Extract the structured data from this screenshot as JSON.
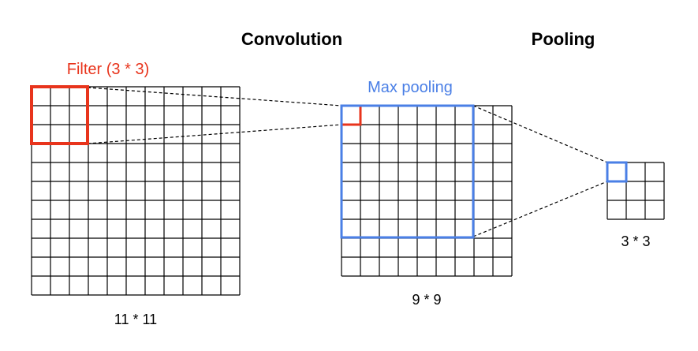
{
  "headings": {
    "convolution": "Convolution",
    "pooling": "Pooling"
  },
  "labels": {
    "filter": "Filter (3 * 3)",
    "max_pooling": "Max pooling"
  },
  "grids": {
    "input": {
      "size": 11,
      "caption": "11 * 11"
    },
    "feature_map": {
      "size": 9,
      "caption": "9 * 9"
    },
    "pooled": {
      "size": 3,
      "caption": "3 * 3"
    }
  },
  "highlights": {
    "filter_cells": 3,
    "pooling_window_cells": 7
  },
  "colors": {
    "filter": "#e8341c",
    "max_pooling": "#4a7fe6",
    "grid_line": "#000000",
    "connector": "#000000"
  }
}
